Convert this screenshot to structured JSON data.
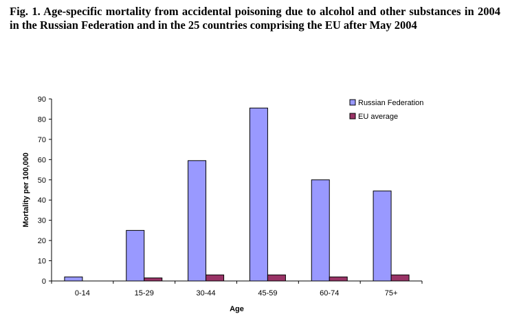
{
  "figure": {
    "caption": "Fig. 1. Age-specific mortality from accidental poisoning due to alcohol and other substances in 2004 in the Russian Federation and in the 25 countries comprising the EU after May 2004"
  },
  "chart_data": {
    "type": "bar",
    "title": "",
    "xlabel": "Age",
    "ylabel": "Mortality per 100,000",
    "categories": [
      "0-14",
      "15-29",
      "30-44",
      "45-59",
      "60-74",
      "75+"
    ],
    "series": [
      {
        "name": "Russian Federation",
        "values": [
          2,
          25,
          59.5,
          85.5,
          50,
          44.5
        ],
        "color": "#9999ff"
      },
      {
        "name": "EU average",
        "values": [
          0,
          1.5,
          3,
          3,
          2,
          3
        ],
        "color": "#993366"
      }
    ],
    "ylim": [
      0,
      90
    ],
    "yticks": [
      0,
      10,
      20,
      30,
      40,
      50,
      60,
      70,
      80,
      90
    ],
    "grid": false,
    "legend_position": "top-right"
  }
}
